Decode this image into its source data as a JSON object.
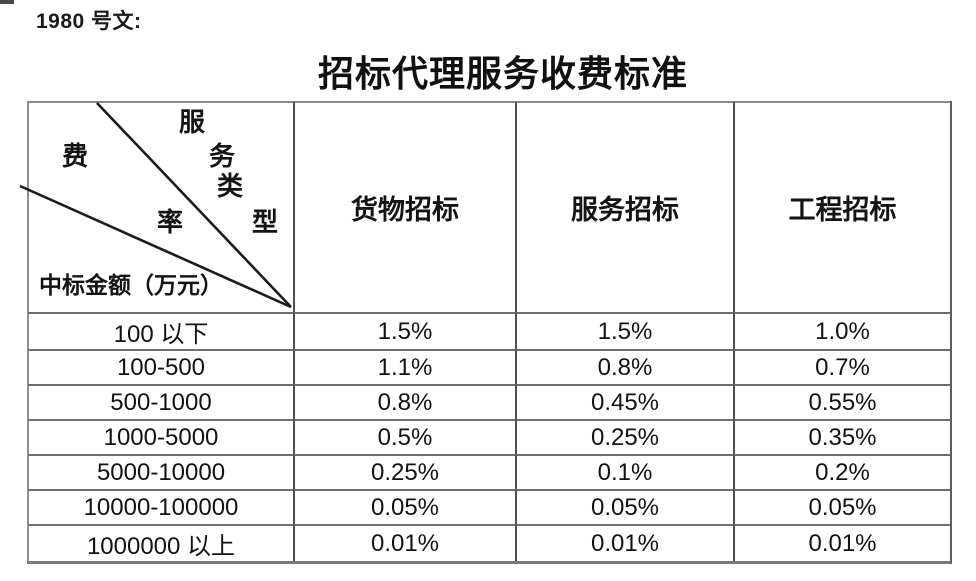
{
  "document": {
    "doc_number": "1980 号文:",
    "title": "招标代理服务收费标准"
  },
  "table": {
    "corner": {
      "fee_char": "费",
      "rate_char": "率",
      "service_type_chars": [
        "服",
        "务",
        "类",
        "型"
      ],
      "amount_label": "中标金额（万元）"
    },
    "columns": [
      "货物招标",
      "服务招标",
      "工程招标"
    ],
    "rows": [
      {
        "range": "100 以下",
        "values": [
          "1.5%",
          "1.5%",
          "1.0%"
        ]
      },
      {
        "range": "100-500",
        "values": [
          "1.1%",
          "0.8%",
          "0.7%"
        ]
      },
      {
        "range": "500-1000",
        "values": [
          "0.8%",
          "0.45%",
          "0.55%"
        ]
      },
      {
        "range": "1000-5000",
        "values": [
          "0.5%",
          "0.25%",
          "0.35%"
        ]
      },
      {
        "range": "5000-10000",
        "values": [
          "0.25%",
          "0.1%",
          "0.2%"
        ]
      },
      {
        "range": "10000-100000",
        "values": [
          "0.05%",
          "0.05%",
          "0.05%"
        ]
      },
      {
        "range": "1000000 以上",
        "values": [
          "0.01%",
          "0.01%",
          "0.01%"
        ]
      }
    ]
  },
  "colors": {
    "text": "#161616",
    "border_vertical": "#4f4f4f",
    "border_horizontal": "#6f6f6f",
    "border_outer": "#8a8a8a",
    "diagonal_line": "#1c1c1c",
    "background": "#ffffff"
  }
}
